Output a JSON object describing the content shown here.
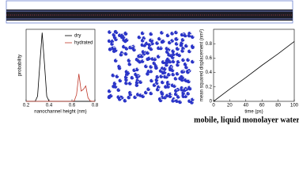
{
  "chart_data": [
    {
      "type": "line",
      "x_label": "nanochannel height (nm)",
      "y_label": "probability",
      "x": [
        0.2,
        0.22,
        0.24,
        0.26,
        0.28,
        0.3,
        0.32,
        0.34,
        0.36,
        0.38,
        0.4,
        0.42,
        0.44,
        0.46,
        0.48,
        0.5,
        0.52,
        0.54,
        0.56,
        0.58,
        0.6,
        0.62,
        0.64,
        0.66,
        0.68,
        0.7,
        0.72,
        0.74,
        0.76,
        0.78,
        0.8
      ],
      "series": [
        {
          "name": "dry",
          "color": "#000000",
          "values": [
            0,
            0,
            0,
            0,
            0.1,
            3,
            22,
            40,
            22,
            3,
            0.1,
            0,
            0,
            0,
            0,
            0,
            0,
            0,
            0,
            0,
            0,
            0,
            0,
            0,
            0,
            0,
            0,
            0,
            0,
            0,
            0
          ]
        },
        {
          "name": "hydrated",
          "color": "#c0392b",
          "values": [
            0,
            0,
            0,
            0,
            0,
            0,
            0,
            0,
            0,
            0,
            0,
            0,
            0,
            0,
            0,
            0,
            0,
            0,
            0,
            0,
            0,
            0.3,
            4,
            16,
            6,
            7,
            9,
            2,
            0.2,
            0,
            0
          ]
        }
      ],
      "xlim": [
        0.2,
        0.8
      ],
      "xticks": [
        0.2,
        0.4,
        0.6,
        0.8
      ],
      "ylim": [
        0,
        42
      ],
      "legend": "upper right"
    },
    {
      "type": "line",
      "x_label": "time (ps)",
      "y_label": "mean squared displacement (nm²)",
      "x": [
        0,
        20,
        40,
        60,
        80,
        100
      ],
      "series": [
        {
          "color": "#000000",
          "values": [
            0,
            0.17,
            0.33,
            0.5,
            0.66,
            0.83
          ]
        }
      ],
      "xlim": [
        0,
        100
      ],
      "xticks": [
        0,
        20,
        40,
        60,
        80,
        100
      ],
      "ylim": [
        0,
        1
      ],
      "yticks": [
        0,
        0.2,
        0.4,
        0.6,
        0.8
      ]
    }
  ],
  "caption": "mobile, liquid monolayer water"
}
